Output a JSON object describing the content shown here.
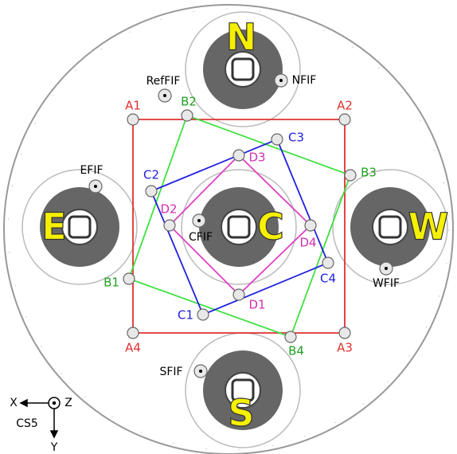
{
  "mounts": [
    {
      "label": "N"
    },
    {
      "label": "S"
    },
    {
      "label": "E"
    },
    {
      "label": "W"
    },
    {
      "label": "C"
    }
  ],
  "points": {
    "A": [
      "A1",
      "A2",
      "A3",
      "A4"
    ],
    "B": [
      "B1",
      "B2",
      "B3",
      "B4"
    ],
    "C": [
      "C1",
      "C2",
      "C3",
      "C4"
    ],
    "D": [
      "D1",
      "D2",
      "D3",
      "D4"
    ]
  },
  "fiducials": [
    "RefFIF",
    "NFIF",
    "EFIF",
    "CFIF",
    "WFIF",
    "SFIF"
  ],
  "axes": {
    "x": "X",
    "y": "Y",
    "z": "Z",
    "frame": "CS5"
  }
}
